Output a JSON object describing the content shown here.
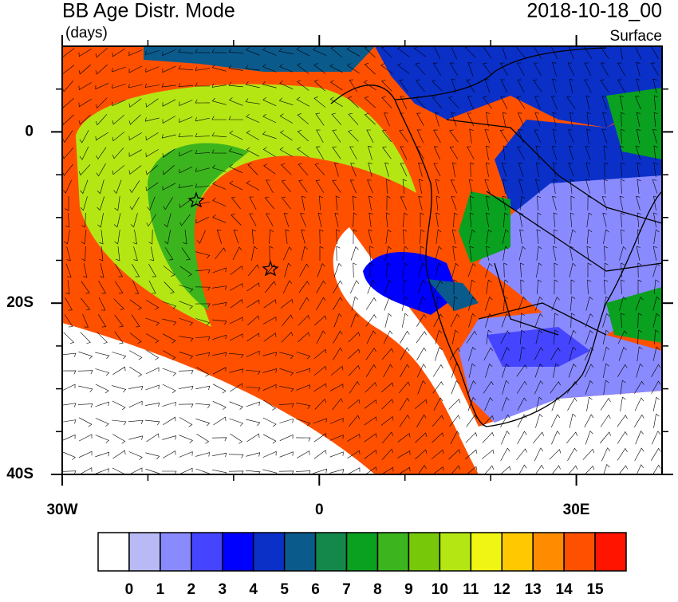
{
  "title": "BB Age Distr. Mode",
  "units": "(days)",
  "date": "2018-10-18_00",
  "level": "Surface",
  "map": {
    "xlim": [
      -30,
      40
    ],
    "ylim": [
      -40,
      10
    ],
    "xticks": [
      {
        "value": -30,
        "label": "30W"
      },
      0,
      {
        "value": 30,
        "label": "30E"
      }
    ],
    "yticks": [
      0,
      {
        "value": -20,
        "label": "20S"
      },
      {
        "value": -40,
        "label": "40S"
      }
    ],
    "xminor": [
      -20,
      -10,
      10,
      20
    ],
    "yminor": [
      5,
      -5,
      -10,
      -15,
      -25,
      -30,
      -35
    ]
  },
  "colorbar": {
    "colors": [
      "#ffffff",
      "#b9b9f6",
      "#8a8aff",
      "#4545ff",
      "#0000ff",
      "#0a30c8",
      "#0a5a8c",
      "#14884a",
      "#0aa020",
      "#3cb41e",
      "#78c80a",
      "#b4e614",
      "#f0f514",
      "#ffc800",
      "#ff8c00",
      "#ff5000",
      "#ff1400"
    ],
    "labels": [
      0,
      1,
      2,
      3,
      4,
      5,
      6,
      7,
      8,
      9,
      10,
      11,
      12,
      13,
      14,
      15
    ]
  }
}
